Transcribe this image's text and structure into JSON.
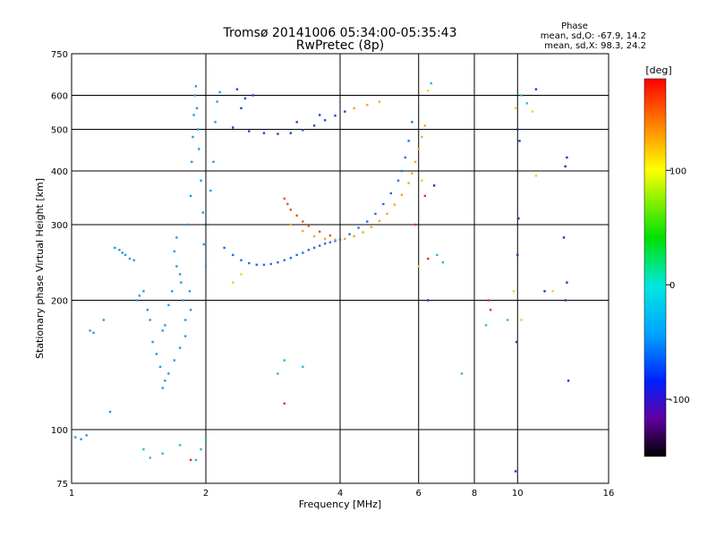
{
  "chart_data": {
    "type": "scatter",
    "title": "Tromsø 20141006 05:34:00-05:35:43",
    "subtitle": "RwPretec (8p)",
    "xlabel": "Frequency [MHz]",
    "ylabel": "Stationary phase Virtual Height [km]",
    "x_scale": "log",
    "y_scale": "log",
    "xlim": [
      1,
      16
    ],
    "ylim": [
      75,
      750
    ],
    "x_ticks": [
      1,
      2,
      4,
      6,
      8,
      10,
      16
    ],
    "y_ticks": [
      75,
      100,
      200,
      300,
      400,
      500,
      600,
      750
    ],
    "grid": true,
    "colorbar": {
      "label": "[deg]",
      "range": [
        -150,
        180
      ],
      "ticks": [
        100,
        0,
        -100
      ],
      "colormap": "rainbow"
    },
    "stats": {
      "title": "Phase",
      "line1": "mean, sd,O: -67.9, 14.2",
      "line2": "mean, sd,X:  98.3, 24.2"
    },
    "series": [
      {
        "color": "#1f9be6",
        "phase": -60,
        "points": [
          [
            1.02,
            96
          ],
          [
            1.05,
            95
          ],
          [
            1.08,
            97
          ],
          [
            1.1,
            170
          ],
          [
            1.12,
            168
          ],
          [
            1.18,
            180
          ],
          [
            1.22,
            110
          ],
          [
            1.25,
            265
          ],
          [
            1.28,
            262
          ],
          [
            1.3,
            258
          ],
          [
            1.32,
            255
          ],
          [
            1.35,
            250
          ],
          [
            1.38,
            248
          ],
          [
            1.4,
            200
          ],
          [
            1.42,
            205
          ],
          [
            1.45,
            210
          ],
          [
            1.48,
            190
          ],
          [
            1.5,
            180
          ],
          [
            1.52,
            160
          ],
          [
            1.55,
            150
          ],
          [
            1.58,
            140
          ],
          [
            1.6,
            170
          ],
          [
            1.62,
            175
          ],
          [
            1.65,
            195
          ],
          [
            1.68,
            210
          ],
          [
            1.7,
            260
          ],
          [
            1.72,
            280
          ],
          [
            1.75,
            230
          ],
          [
            1.78,
            200
          ],
          [
            1.8,
            180
          ],
          [
            1.82,
            300
          ],
          [
            1.85,
            350
          ],
          [
            1.86,
            420
          ],
          [
            1.87,
            480
          ],
          [
            1.88,
            540
          ],
          [
            1.89,
            600
          ],
          [
            1.9,
            630
          ],
          [
            1.91,
            560
          ],
          [
            1.92,
            500
          ],
          [
            1.93,
            450
          ],
          [
            1.95,
            380
          ],
          [
            1.97,
            320
          ],
          [
            1.98,
            270
          ],
          [
            2.0,
            240
          ],
          [
            2.02,
            300
          ],
          [
            2.05,
            360
          ],
          [
            2.08,
            420
          ],
          [
            2.1,
            520
          ],
          [
            2.12,
            580
          ],
          [
            2.15,
            610
          ],
          [
            1.6,
            125
          ],
          [
            1.62,
            130
          ],
          [
            1.65,
            135
          ],
          [
            1.7,
            145
          ],
          [
            1.75,
            155
          ],
          [
            1.8,
            165
          ],
          [
            1.85,
            190
          ],
          [
            1.72,
            240
          ],
          [
            1.76,
            220
          ],
          [
            1.84,
            210
          ]
        ]
      },
      {
        "color": "#1f6fe0",
        "phase": -90,
        "points": [
          [
            2.2,
            265
          ],
          [
            2.3,
            255
          ],
          [
            2.4,
            248
          ],
          [
            2.5,
            244
          ],
          [
            2.6,
            242
          ],
          [
            2.7,
            242
          ],
          [
            2.8,
            243
          ],
          [
            2.9,
            245
          ],
          [
            3.0,
            248
          ],
          [
            3.1,
            251
          ],
          [
            3.2,
            255
          ],
          [
            3.3,
            258
          ],
          [
            3.4,
            262
          ],
          [
            3.5,
            265
          ],
          [
            3.6,
            268
          ],
          [
            3.7,
            271
          ],
          [
            3.8,
            273
          ],
          [
            3.9,
            275
          ],
          [
            4.0,
            277
          ],
          [
            4.2,
            285
          ],
          [
            4.4,
            295
          ],
          [
            4.6,
            305
          ],
          [
            4.8,
            318
          ],
          [
            5.0,
            335
          ],
          [
            5.2,
            355
          ],
          [
            5.4,
            380
          ],
          [
            5.5,
            400
          ],
          [
            5.6,
            430
          ],
          [
            5.7,
            470
          ],
          [
            5.8,
            520
          ]
        ]
      },
      {
        "color": "#2045c8",
        "phase": -110,
        "points": [
          [
            2.3,
            505
          ],
          [
            2.5,
            495
          ],
          [
            2.7,
            490
          ],
          [
            2.9,
            488
          ],
          [
            3.1,
            490
          ],
          [
            3.3,
            498
          ],
          [
            3.5,
            510
          ],
          [
            3.7,
            525
          ],
          [
            3.9,
            538
          ],
          [
            4.1,
            550
          ],
          [
            2.4,
            560
          ],
          [
            2.45,
            590
          ],
          [
            2.55,
            600
          ],
          [
            2.35,
            620
          ],
          [
            3.2,
            520
          ],
          [
            3.6,
            540
          ]
        ]
      },
      {
        "color": "#f2a628",
        "phase": 110,
        "points": [
          [
            3.1,
            300
          ],
          [
            3.3,
            290
          ],
          [
            3.5,
            282
          ],
          [
            3.7,
            278
          ],
          [
            3.9,
            277
          ],
          [
            4.1,
            278
          ],
          [
            4.3,
            282
          ],
          [
            4.5,
            288
          ],
          [
            4.7,
            296
          ],
          [
            4.9,
            306
          ],
          [
            5.1,
            318
          ],
          [
            5.3,
            334
          ],
          [
            5.5,
            352
          ],
          [
            5.7,
            375
          ],
          [
            5.8,
            395
          ],
          [
            5.9,
            420
          ],
          [
            6.0,
            450
          ],
          [
            6.1,
            480
          ],
          [
            6.2,
            510
          ],
          [
            4.3,
            560
          ],
          [
            4.6,
            570
          ],
          [
            4.9,
            580
          ]
        ]
      },
      {
        "color": "#e25622",
        "phase": 150,
        "points": [
          [
            3.0,
            345
          ],
          [
            3.05,
            335
          ],
          [
            3.1,
            325
          ],
          [
            3.2,
            315
          ],
          [
            3.3,
            305
          ],
          [
            3.4,
            298
          ],
          [
            3.6,
            289
          ],
          [
            3.8,
            283
          ]
        ]
      },
      {
        "color": "#2ab8d8",
        "phase": -40,
        "points": [
          [
            1.9,
            85
          ],
          [
            1.95,
            90
          ],
          [
            2.0,
            95
          ],
          [
            1.75,
            92
          ],
          [
            1.6,
            88
          ],
          [
            1.5,
            86
          ],
          [
            1.45,
            90
          ],
          [
            2.9,
            135
          ],
          [
            3.0,
            145
          ],
          [
            3.3,
            140
          ],
          [
            7.5,
            135
          ],
          [
            8.5,
            175
          ],
          [
            9.5,
            180
          ],
          [
            10.5,
            575
          ],
          [
            10.2,
            600
          ],
          [
            6.4,
            640
          ],
          [
            6.6,
            255
          ],
          [
            6.8,
            245
          ]
        ]
      },
      {
        "color": "#1a3ab0",
        "phase": -120,
        "points": [
          [
            9.9,
            80
          ],
          [
            9.95,
            160
          ],
          [
            10.0,
            255
          ],
          [
            10.05,
            310
          ],
          [
            10.1,
            470
          ],
          [
            10.0,
            500
          ],
          [
            12.8,
            200
          ],
          [
            12.9,
            220
          ],
          [
            12.7,
            280
          ],
          [
            12.8,
            410
          ],
          [
            13.0,
            130
          ],
          [
            12.9,
            430
          ],
          [
            11.5,
            210
          ],
          [
            11.0,
            620
          ],
          [
            6.3,
            200
          ],
          [
            6.5,
            370
          ]
        ]
      },
      {
        "color": "#f0d020",
        "phase": 95,
        "points": [
          [
            6.0,
            240
          ],
          [
            6.1,
            380
          ],
          [
            9.9,
            560
          ],
          [
            10.8,
            550
          ],
          [
            11.0,
            390
          ],
          [
            12.0,
            210
          ],
          [
            6.3,
            615
          ],
          [
            2.3,
            220
          ],
          [
            2.4,
            230
          ],
          [
            10.2,
            180
          ],
          [
            9.8,
            210
          ]
        ]
      },
      {
        "color": "#e8301a",
        "phase": 170,
        "points": [
          [
            3.0,
            115
          ],
          [
            8.6,
            200
          ],
          [
            8.7,
            190
          ],
          [
            6.3,
            250
          ],
          [
            6.2,
            350
          ],
          [
            5.9,
            300
          ],
          [
            1.85,
            85
          ]
        ]
      }
    ]
  }
}
